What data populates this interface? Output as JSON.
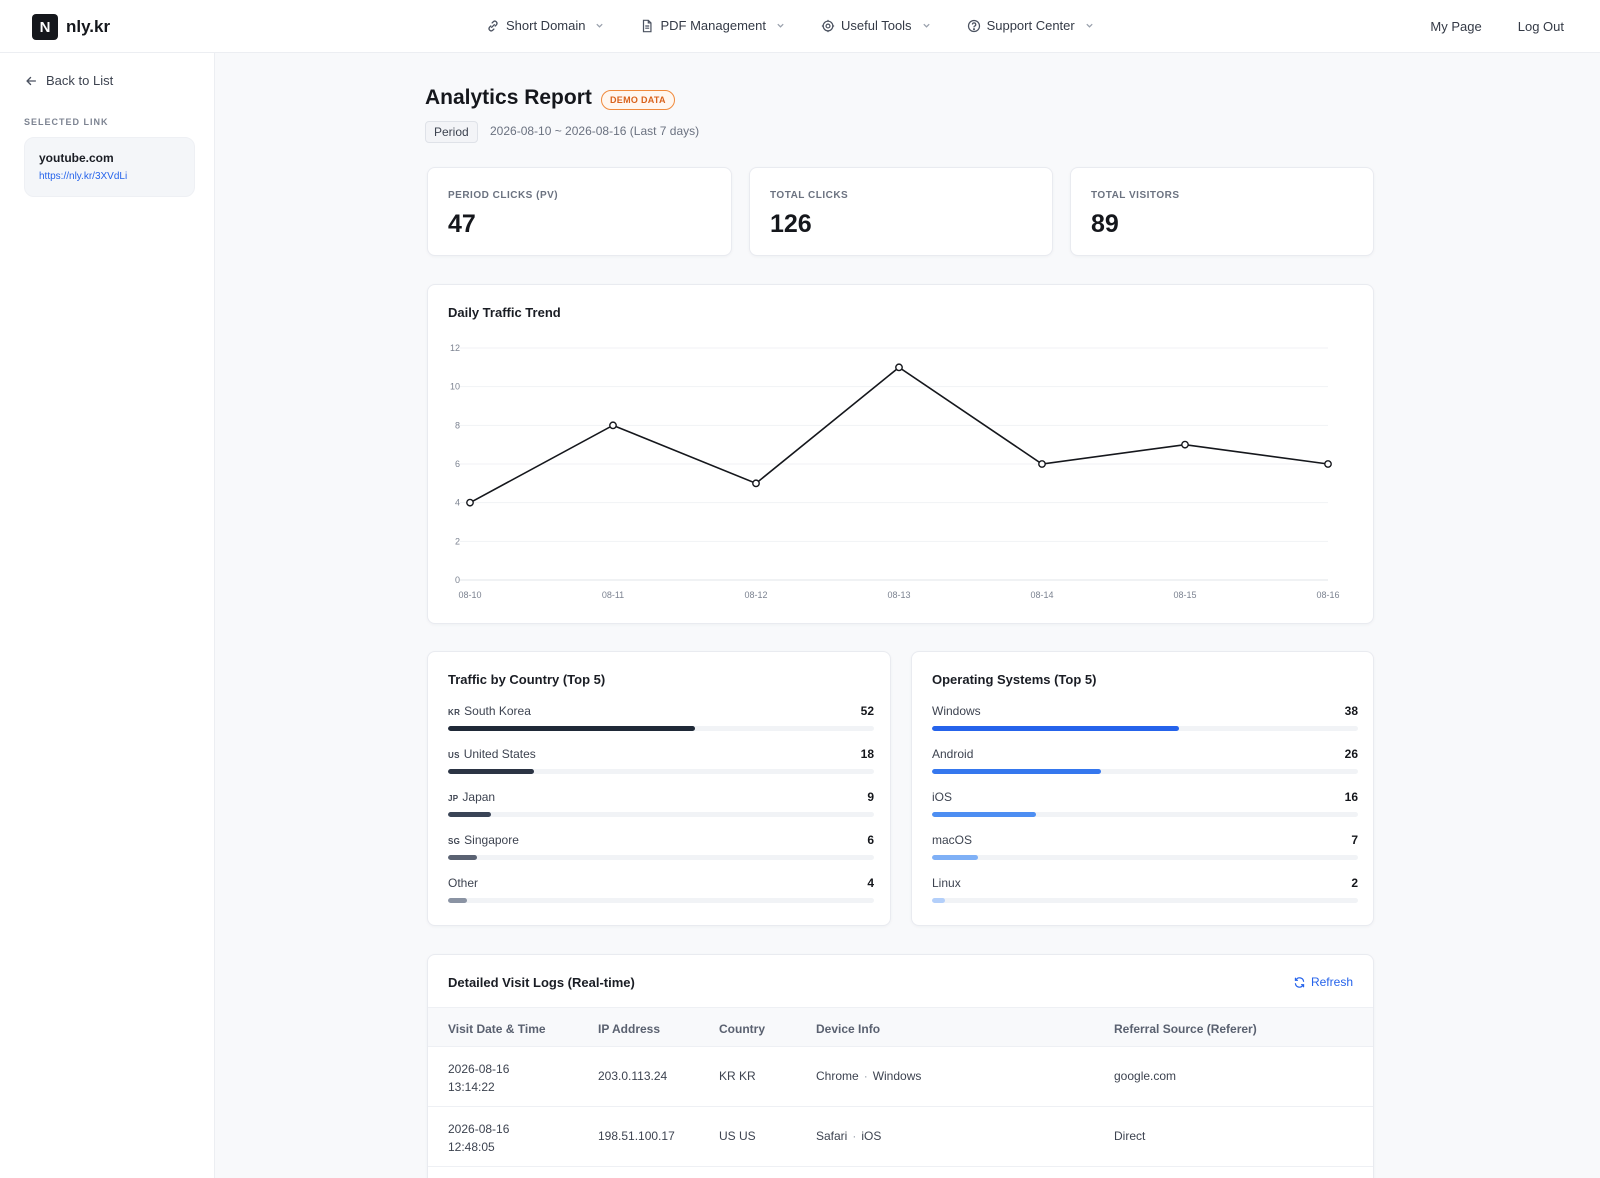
{
  "brand": {
    "mark": "N",
    "name": "nly.kr"
  },
  "nav": {
    "items": [
      {
        "label": "Short Domain"
      },
      {
        "label": "PDF Management"
      },
      {
        "label": "Useful Tools"
      },
      {
        "label": "Support Center"
      }
    ],
    "my_page": "My Page",
    "log_out": "Log Out"
  },
  "sidebar": {
    "back_label": "Back to List",
    "section_label": "SELECTED LINK",
    "selected": {
      "title": "youtube.com",
      "url": "https://nly.kr/3XVdLi"
    }
  },
  "header": {
    "title": "Analytics Report",
    "badge": "DEMO DATA",
    "period_chip": "Period",
    "period_text": "2026-08-10 ~ 2026-08-16 (Last 7 days)"
  },
  "stats": [
    {
      "label": "PERIOD CLICKS (PV)",
      "value": "47"
    },
    {
      "label": "TOTAL CLICKS",
      "value": "126"
    },
    {
      "label": "TOTAL VISITORS",
      "value": "89"
    }
  ],
  "chart_data": {
    "type": "line",
    "title": "Daily Traffic Trend",
    "categories": [
      "08-10",
      "08-11",
      "08-12",
      "08-13",
      "08-14",
      "08-15",
      "08-16"
    ],
    "values": [
      4,
      8,
      5,
      11,
      6,
      7,
      6
    ],
    "ylim": [
      0,
      12
    ],
    "yticks": [
      0,
      2,
      4,
      6,
      8,
      10,
      12
    ],
    "xlabel": "",
    "ylabel": "",
    "grid": true,
    "line_color": "#15171c"
  },
  "countries": {
    "title": "Traffic by Country (Top 5)",
    "max": 52,
    "items": [
      {
        "code": "KR",
        "name": "South Korea",
        "value": 52,
        "color": "#1f2937"
      },
      {
        "code": "US",
        "name": "United States",
        "value": 18,
        "color": "#2b3444"
      },
      {
        "code": "JP",
        "name": "Japan",
        "value": 9,
        "color": "#3a4456"
      },
      {
        "code": "SG",
        "name": "Singapore",
        "value": 6,
        "color": "#5a6272"
      },
      {
        "code": "",
        "name": "Other",
        "value": 4,
        "color": "#8a93a3"
      }
    ]
  },
  "os": {
    "title": "Operating Systems (Top 5)",
    "max": 38,
    "items": [
      {
        "name": "Windows",
        "value": 38,
        "color": "#2563eb"
      },
      {
        "name": "Android",
        "value": 26,
        "color": "#3577ee"
      },
      {
        "name": "iOS",
        "value": 16,
        "color": "#4d8ef2"
      },
      {
        "name": "macOS",
        "value": 7,
        "color": "#7fb0f6"
      },
      {
        "name": "Linux",
        "value": 2,
        "color": "#b3cffa"
      }
    ]
  },
  "logs": {
    "title": "Detailed Visit Logs (Real-time)",
    "refresh_label": "Refresh",
    "columns": [
      "Visit Date & Time",
      "IP Address",
      "Country",
      "Device Info",
      "Referral Source (Referer)"
    ],
    "rows": [
      {
        "date": "2026-08-16",
        "time": "13:14:22",
        "ip": "203.0.113.24",
        "country": "KR KR",
        "browser": "Chrome",
        "os": "Windows",
        "referer": "google.com"
      },
      {
        "date": "2026-08-16",
        "time": "12:48:05",
        "ip": "198.51.100.17",
        "country": "US US",
        "browser": "Safari",
        "os": "iOS",
        "referer": "Direct"
      }
    ]
  }
}
